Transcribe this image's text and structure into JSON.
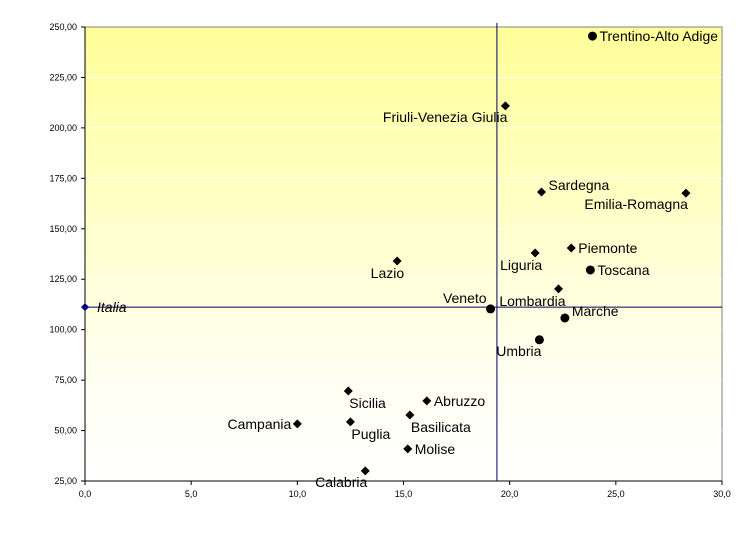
{
  "chart_data": {
    "type": "scatter",
    "title": "",
    "xlabel": "",
    "ylabel": "",
    "xlim": [
      0,
      30
    ],
    "ylim": [
      25,
      250
    ],
    "x_ticks": [
      "0,0",
      "5,0",
      "10,0",
      "15,0",
      "20,0",
      "25,0",
      "30,0"
    ],
    "x_tick_values": [
      0,
      5,
      10,
      15,
      20,
      25,
      30
    ],
    "y_ticks": [
      "25,00",
      "50,00",
      "75,00",
      "100,00",
      "125,00",
      "150,00",
      "175,00",
      "200,00",
      "225,00",
      "250,00"
    ],
    "y_tick_values": [
      25,
      50,
      75,
      100,
      125,
      150,
      175,
      200,
      225,
      250
    ],
    "grid": true,
    "reference_lines": {
      "x": 19.4,
      "y": 111.2
    },
    "reference": {
      "name": "Italia",
      "x": 0,
      "y": 111.2
    },
    "points": [
      {
        "name": "Trentino-Alto  Adige",
        "x": 23.9,
        "y": 245.5,
        "marker": "circle",
        "pos": "right"
      },
      {
        "name": "Friuli-Venezia  Giulia",
        "x": 19.8,
        "y": 210.9,
        "marker": "diamond",
        "pos": "left-below"
      },
      {
        "name": "Sardegna",
        "x": 21.5,
        "y": 168.2,
        "marker": "diamond",
        "pos": "right-above"
      },
      {
        "name": "Emilia-Romagna",
        "x": 28.3,
        "y": 167.7,
        "marker": "diamond",
        "pos": "left-below"
      },
      {
        "name": "Piemonte",
        "x": 22.9,
        "y": 140.5,
        "marker": "diamond",
        "pos": "right"
      },
      {
        "name": "Liguria",
        "x": 21.2,
        "y": 138.0,
        "marker": "diamond",
        "pos": "below-left"
      },
      {
        "name": "Toscana",
        "x": 23.8,
        "y": 129.6,
        "marker": "circle",
        "pos": "right"
      },
      {
        "name": "Lazio",
        "x": 14.7,
        "y": 134.0,
        "marker": "diamond",
        "pos": "below-left"
      },
      {
        "name": "Lombardia",
        "x": 22.3,
        "y": 120.2,
        "marker": "diamond",
        "pos": "below-left"
      },
      {
        "name": "Veneto",
        "x": 19.1,
        "y": 110.3,
        "marker": "circle",
        "pos": "left-above"
      },
      {
        "name": "Marche",
        "x": 22.6,
        "y": 105.8,
        "marker": "circle",
        "pos": "right-above"
      },
      {
        "name": "Umbria",
        "x": 21.4,
        "y": 95.0,
        "marker": "circle",
        "pos": "left-below"
      },
      {
        "name": "Sicilia",
        "x": 12.4,
        "y": 69.6,
        "marker": "diamond",
        "pos": "below-right"
      },
      {
        "name": "Abruzzo",
        "x": 16.1,
        "y": 64.7,
        "marker": "diamond",
        "pos": "right"
      },
      {
        "name": "Basilicata",
        "x": 15.3,
        "y": 57.7,
        "marker": "diamond",
        "pos": "below-right"
      },
      {
        "name": "Puglia",
        "x": 12.5,
        "y": 54.3,
        "marker": "diamond",
        "pos": "below-right"
      },
      {
        "name": "Campania",
        "x": 10.0,
        "y": 53.3,
        "marker": "diamond",
        "pos": "left"
      },
      {
        "name": "Molise",
        "x": 15.2,
        "y": 40.9,
        "marker": "diamond",
        "pos": "right"
      },
      {
        "name": "Calabria",
        "x": 13.2,
        "y": 30.0,
        "marker": "diamond",
        "pos": "left-below"
      }
    ],
    "colors": {
      "bg_top": "#ffff99",
      "bg_bottom": "#ffffff",
      "ref_line": "#000066",
      "italia": "#000080",
      "marker": "#000000"
    }
  }
}
